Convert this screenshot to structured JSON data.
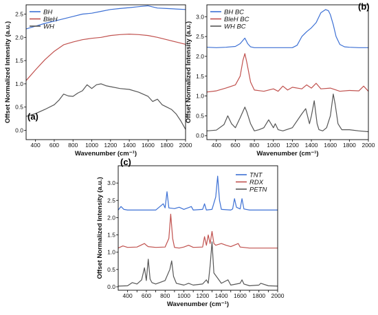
{
  "chart_data": [
    {
      "id": "a",
      "type": "line",
      "panel_label": "(a)",
      "xlabel": "Wavenumber (cm⁻¹)",
      "ylabel": "Offset Normalized Intensity (a.u.)",
      "xlim": [
        300,
        2000
      ],
      "ylim": [
        -0.2,
        2.7
      ],
      "xticks": [
        400,
        600,
        800,
        1000,
        1200,
        1400,
        1600,
        1800,
        2000
      ],
      "yticks": [
        0.0,
        0.5,
        1.0,
        1.5,
        2.0,
        2.5
      ],
      "legend_position": "top-left",
      "series": [
        {
          "name": "BH",
          "color": "#3b6fd4",
          "x": [
            300,
            400,
            500,
            600,
            700,
            800,
            900,
            1000,
            1100,
            1200,
            1300,
            1400,
            1500,
            1600,
            1700,
            1800,
            1900,
            2000
          ],
          "y": [
            2.18,
            2.24,
            2.3,
            2.35,
            2.4,
            2.45,
            2.5,
            2.52,
            2.56,
            2.6,
            2.62,
            2.64,
            2.66,
            2.68,
            2.63,
            2.62,
            2.61,
            2.6
          ]
        },
        {
          "name": "BleH",
          "color": "#c0504d",
          "x": [
            300,
            400,
            500,
            600,
            700,
            800,
            900,
            1000,
            1100,
            1200,
            1300,
            1400,
            1500,
            1600,
            1700,
            1800,
            1900,
            2000
          ],
          "y": [
            1.07,
            1.3,
            1.52,
            1.7,
            1.84,
            1.9,
            1.95,
            1.98,
            2.0,
            2.04,
            2.06,
            2.07,
            2.06,
            2.04,
            2.0,
            1.95,
            1.9,
            1.85
          ]
        },
        {
          "name": "WH",
          "color": "#555555",
          "x": [
            300,
            400,
            500,
            600,
            650,
            700,
            750,
            800,
            850,
            900,
            950,
            1000,
            1050,
            1100,
            1150,
            1200,
            1300,
            1400,
            1500,
            1600,
            1650,
            1700,
            1750,
            1800,
            1850,
            1900,
            1950,
            2000
          ],
          "y": [
            0.3,
            0.36,
            0.45,
            0.55,
            0.65,
            0.78,
            0.74,
            0.73,
            0.8,
            0.85,
            0.98,
            0.9,
            0.98,
            1.0,
            0.96,
            0.94,
            0.9,
            0.88,
            0.82,
            0.73,
            0.62,
            0.67,
            0.55,
            0.5,
            0.45,
            0.35,
            0.2,
            0.02
          ]
        }
      ]
    },
    {
      "id": "b",
      "type": "line",
      "panel_label": "(b)",
      "xlabel": "Wavenumber (cm⁻¹)",
      "ylabel": "Offset Normalized Intensity (a.u.)",
      "xlim": [
        300,
        2000
      ],
      "ylim": [
        -0.1,
        3.3
      ],
      "xticks": [
        400,
        600,
        800,
        1000,
        1200,
        1400,
        1600,
        1800,
        2000
      ],
      "yticks": [
        0.0,
        0.5,
        1.0,
        1.5,
        2.0,
        2.5,
        3.0
      ],
      "legend_position": "top-left",
      "series": [
        {
          "name": "BH BC",
          "color": "#3b6fd4",
          "x": [
            300,
            400,
            500,
            600,
            650,
            700,
            730,
            760,
            800,
            900,
            1000,
            1100,
            1200,
            1250,
            1300,
            1350,
            1400,
            1450,
            1500,
            1550,
            1580,
            1600,
            1630,
            1660,
            1700,
            1750,
            1800,
            1900,
            2000
          ],
          "y": [
            2.23,
            2.22,
            2.23,
            2.25,
            2.32,
            2.46,
            2.32,
            2.24,
            2.22,
            2.22,
            2.22,
            2.22,
            2.22,
            2.28,
            2.5,
            2.62,
            2.72,
            2.85,
            3.1,
            3.18,
            3.15,
            3.05,
            2.8,
            2.5,
            2.3,
            2.24,
            2.23,
            2.22,
            2.22
          ]
        },
        {
          "name": "BleH BC",
          "color": "#c0504d",
          "x": [
            300,
            400,
            500,
            600,
            650,
            680,
            700,
            720,
            760,
            800,
            900,
            1000,
            1050,
            1100,
            1150,
            1200,
            1300,
            1350,
            1400,
            1450,
            1500,
            1600,
            1700,
            1800,
            1900,
            1950,
            2000
          ],
          "y": [
            1.1,
            1.13,
            1.2,
            1.28,
            1.5,
            1.9,
            2.07,
            1.85,
            1.35,
            1.15,
            1.12,
            1.18,
            1.12,
            1.25,
            1.15,
            1.22,
            1.18,
            1.28,
            1.2,
            1.32,
            1.18,
            1.2,
            1.12,
            1.14,
            1.13,
            1.25,
            1.12
          ]
        },
        {
          "name": "WH BC",
          "color": "#555555",
          "x": [
            300,
            400,
            480,
            520,
            560,
            600,
            650,
            700,
            720,
            760,
            800,
            850,
            900,
            950,
            1000,
            1020,
            1050,
            1100,
            1200,
            1300,
            1340,
            1380,
            1400,
            1430,
            1460,
            1480,
            1520,
            1560,
            1600,
            1630,
            1650,
            1680,
            1720,
            1800,
            1900,
            2000
          ],
          "y": [
            0.12,
            0.14,
            0.28,
            0.5,
            0.3,
            0.2,
            0.45,
            0.72,
            0.6,
            0.3,
            0.12,
            0.15,
            0.2,
            0.4,
            0.2,
            0.3,
            0.15,
            0.12,
            0.2,
            0.55,
            0.68,
            0.3,
            0.5,
            0.88,
            0.3,
            0.15,
            0.12,
            0.2,
            0.5,
            1.05,
            0.8,
            0.3,
            0.15,
            0.15,
            0.12,
            0.1
          ]
        }
      ]
    },
    {
      "id": "c",
      "type": "line",
      "panel_label": "(c)",
      "xlabel": "Wavenumber (cm⁻¹)",
      "ylabel": "Offset Normalized Intensity (a.u.)",
      "xlim": [
        300,
        2000
      ],
      "ylim": [
        -0.1,
        3.5
      ],
      "xticks": [
        400,
        500,
        600,
        700,
        800,
        900,
        1000,
        1100,
        1200,
        1300,
        1400,
        1500,
        1600,
        1700,
        1800,
        1900,
        2000
      ],
      "xtick_labels": [
        400,
        600,
        800,
        1000,
        1200,
        1400,
        1600,
        1800,
        2000
      ],
      "yticks": [
        0.0,
        0.5,
        1.0,
        1.5,
        2.0,
        2.5,
        3.0
      ],
      "legend_position": "top-right",
      "series": [
        {
          "name": "TNT",
          "color": "#3b6fd4",
          "x": [
            300,
            330,
            360,
            400,
            700,
            780,
            800,
            820,
            840,
            900,
            950,
            1000,
            1080,
            1100,
            1200,
            1220,
            1240,
            1300,
            1340,
            1360,
            1380,
            1400,
            1500,
            1520,
            1540,
            1560,
            1600,
            1620,
            1640,
            1700,
            1800,
            2000
          ],
          "y": [
            2.22,
            2.32,
            2.24,
            2.22,
            2.22,
            2.4,
            2.28,
            2.75,
            2.28,
            2.26,
            2.3,
            2.24,
            2.32,
            2.22,
            2.24,
            2.4,
            2.22,
            2.24,
            2.6,
            3.2,
            2.5,
            2.24,
            2.22,
            2.25,
            2.55,
            2.3,
            2.25,
            2.55,
            2.25,
            2.22,
            2.22,
            2.22
          ]
        },
        {
          "name": "RDX",
          "color": "#c0504d",
          "x": [
            300,
            350,
            400,
            500,
            580,
            600,
            620,
            700,
            800,
            840,
            860,
            880,
            900,
            950,
            1000,
            1050,
            1100,
            1200,
            1220,
            1240,
            1260,
            1280,
            1300,
            1320,
            1340,
            1400,
            1450,
            1500,
            1580,
            1600,
            1700,
            1800,
            2000
          ],
          "y": [
            1.12,
            1.18,
            1.14,
            1.15,
            1.25,
            1.2,
            1.16,
            1.14,
            1.15,
            1.4,
            2.1,
            1.4,
            1.14,
            1.12,
            1.15,
            1.2,
            1.14,
            1.15,
            1.45,
            1.2,
            1.5,
            1.25,
            1.6,
            1.25,
            1.2,
            1.25,
            1.2,
            1.16,
            1.25,
            1.15,
            1.12,
            1.12,
            1.12
          ]
        },
        {
          "name": "PETN",
          "color": "#555555",
          "x": [
            300,
            400,
            450,
            500,
            550,
            580,
            600,
            620,
            640,
            660,
            700,
            800,
            850,
            870,
            890,
            920,
            1000,
            1050,
            1100,
            1200,
            1240,
            1260,
            1280,
            1300,
            1320,
            1400,
            1470,
            1500,
            1600,
            1620,
            1640,
            1700,
            1800,
            1820,
            1900,
            2000
          ],
          "y": [
            0.02,
            0.03,
            0.12,
            0.08,
            0.2,
            0.55,
            0.18,
            0.8,
            0.22,
            0.12,
            0.08,
            0.18,
            0.5,
            0.75,
            0.3,
            0.1,
            0.05,
            0.1,
            0.05,
            0.08,
            0.2,
            0.1,
            0.6,
            1.3,
            0.4,
            0.1,
            0.2,
            0.05,
            0.1,
            0.2,
            0.08,
            0.03,
            0.05,
            0.1,
            0.03,
            0.02
          ]
        }
      ]
    }
  ]
}
